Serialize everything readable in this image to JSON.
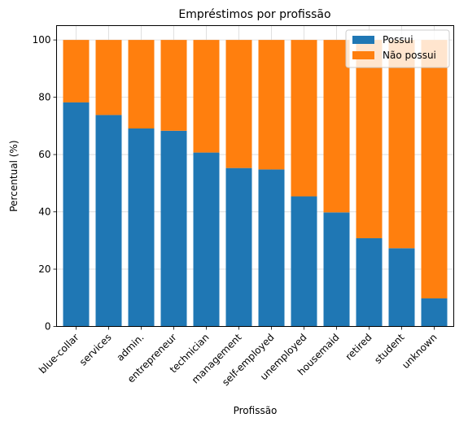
{
  "chart_data": {
    "type": "bar",
    "stacked": true,
    "title": "Empréstimos por profissão",
    "xlabel": "Profissão",
    "ylabel": "Percentual (%)",
    "ylim": [
      0,
      105
    ],
    "yticks": [
      0,
      20,
      40,
      60,
      80,
      100
    ],
    "grid": true,
    "legend_position": "top-right",
    "categories": [
      "blue-collar",
      "services",
      "admin.",
      "entrepreneur",
      "technician",
      "management",
      "self-employed",
      "unemployed",
      "housemaid",
      "retired",
      "student",
      "unknown"
    ],
    "series": [
      {
        "name": "Possui",
        "color": "#1f77b4",
        "values": [
          78.2,
          73.8,
          69.1,
          68.3,
          60.7,
          55.3,
          54.8,
          45.4,
          39.8,
          30.8,
          27.3,
          9.8
        ]
      },
      {
        "name": "Não possui",
        "color": "#ff7f0e",
        "values": [
          21.8,
          26.2,
          30.9,
          31.7,
          39.3,
          44.7,
          45.2,
          54.6,
          60.2,
          69.2,
          72.7,
          90.2
        ]
      }
    ]
  }
}
